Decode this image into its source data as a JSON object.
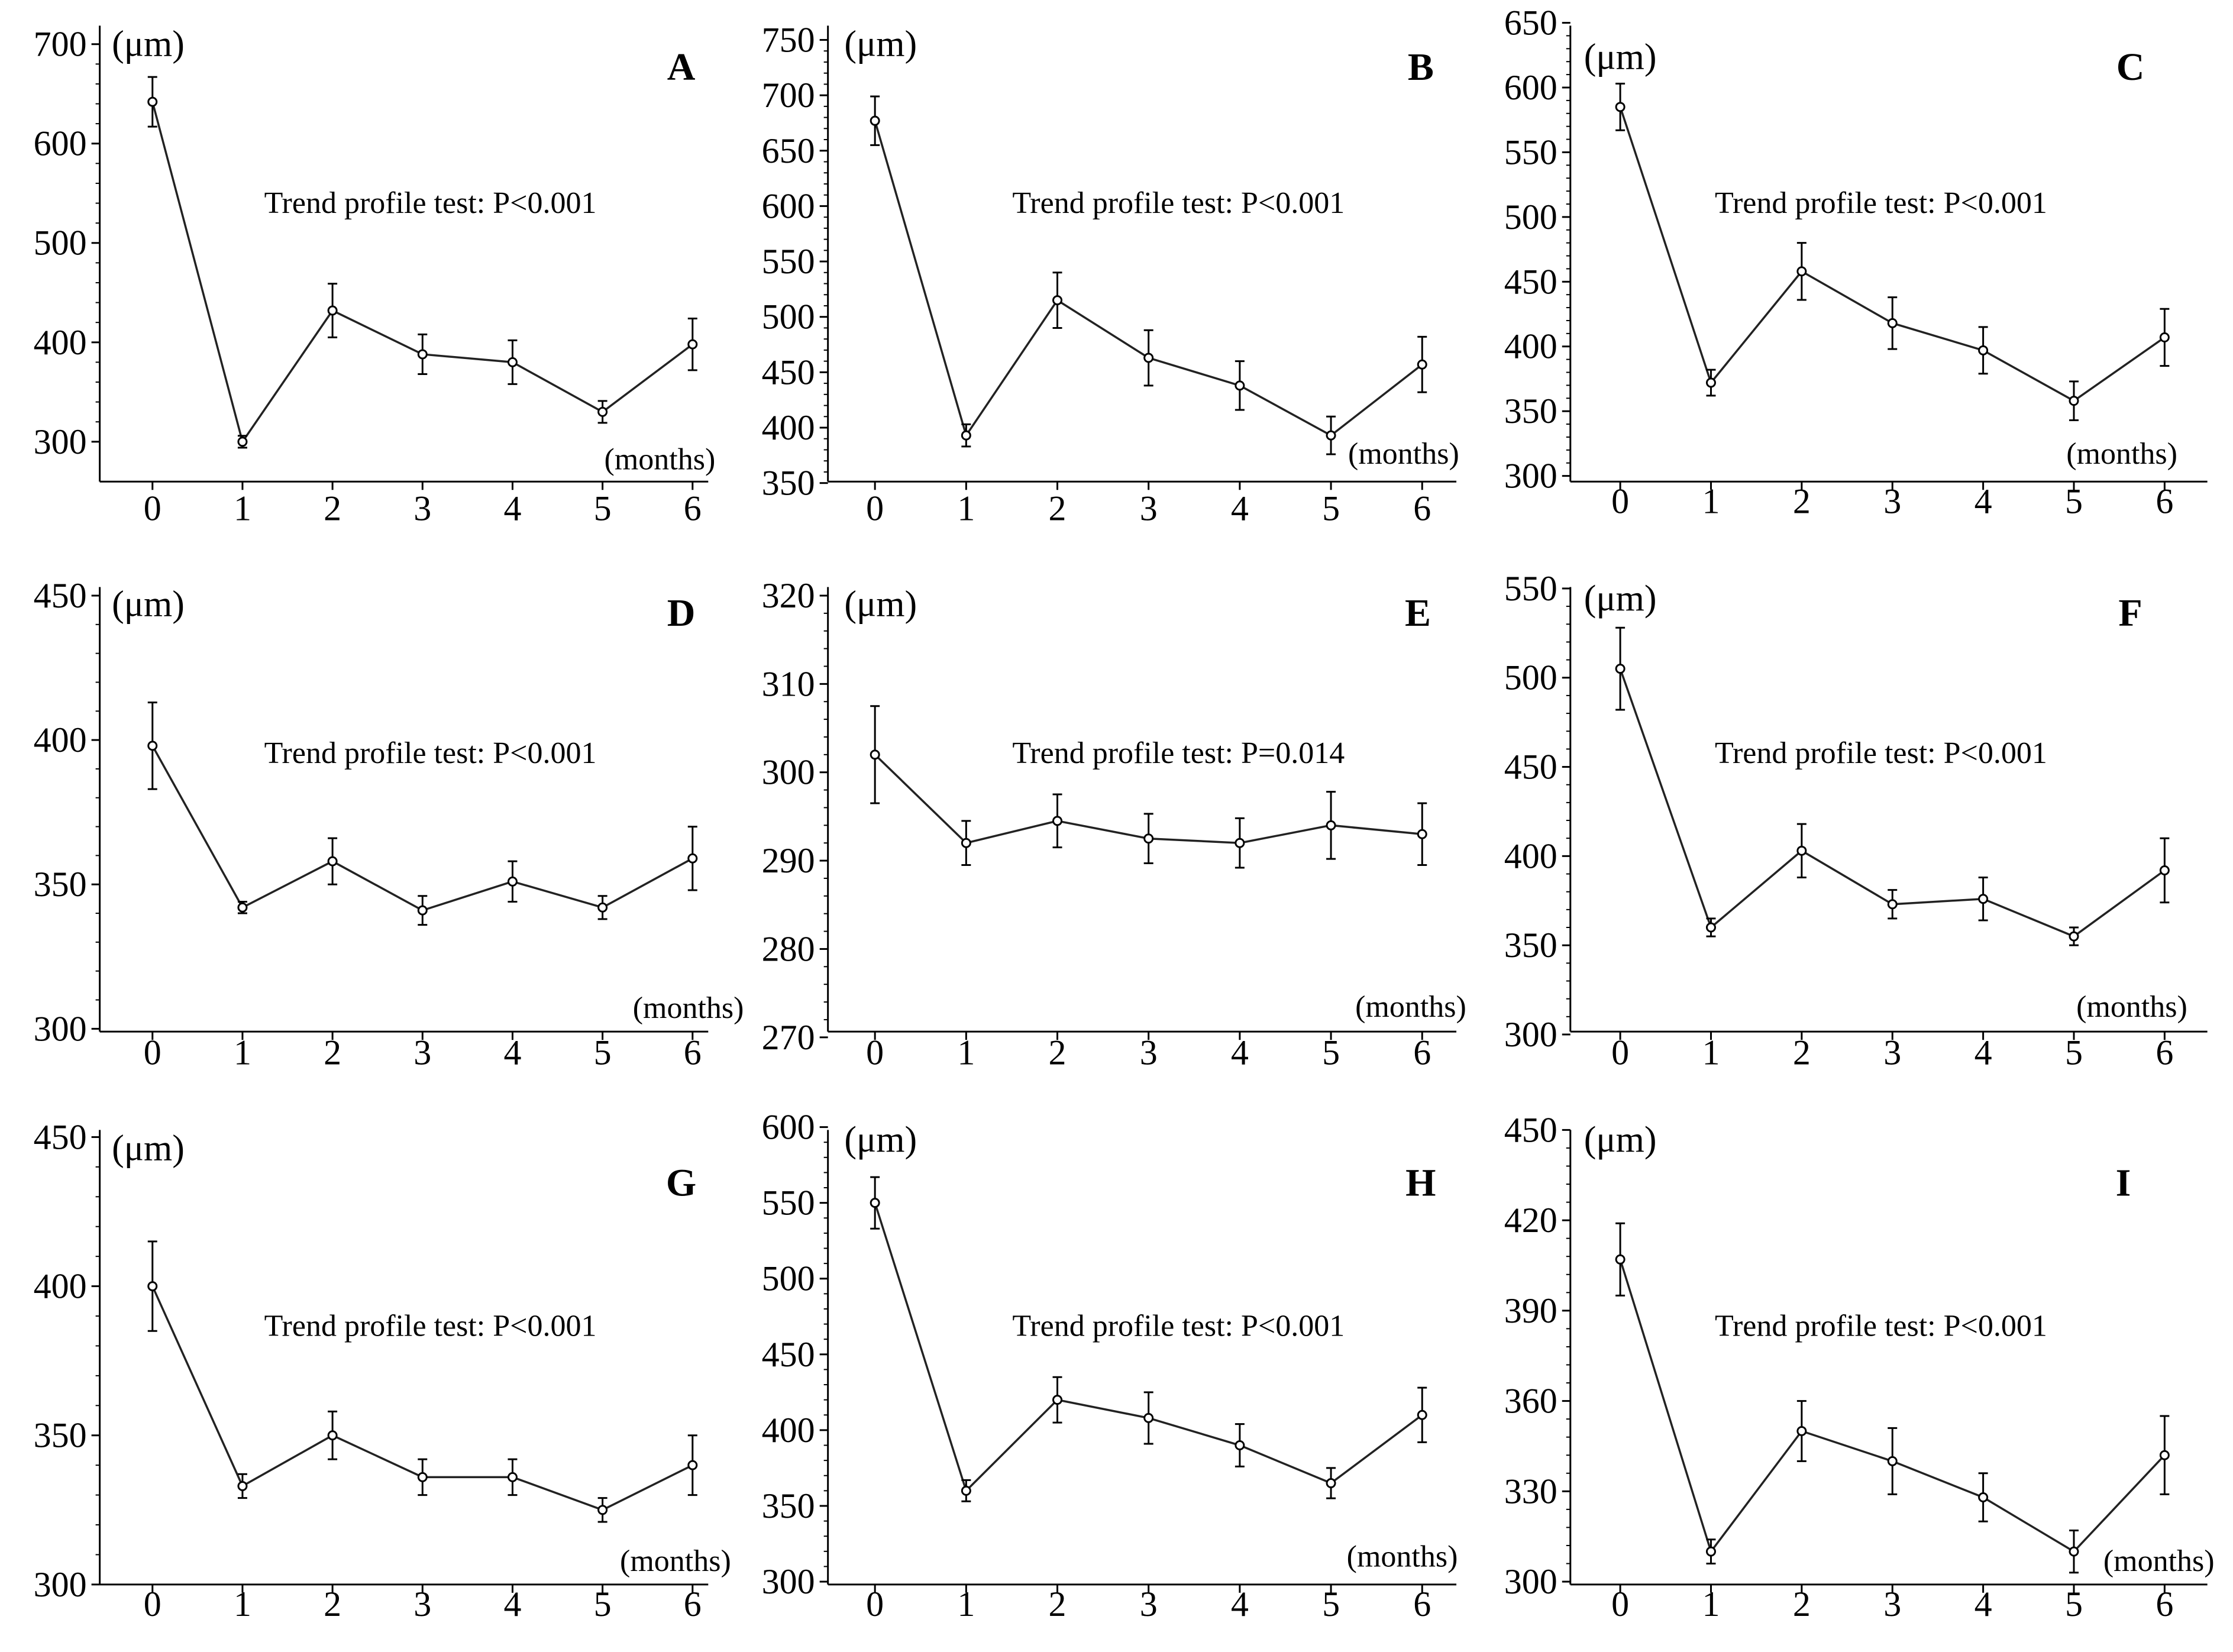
{
  "figure": {
    "x_unit_label": "(months)",
    "y_unit_label": "(μm)"
  },
  "chart_data": [
    {
      "type": "line",
      "panel": "A",
      "annotation": "Trend profile test: P<0.001",
      "ylim": [
        270,
        730
      ],
      "yticks": [
        300,
        400,
        500,
        600,
        700
      ],
      "x": [
        0,
        1,
        2,
        3,
        4,
        5,
        6
      ],
      "values": [
        642,
        300,
        432,
        388,
        380,
        330,
        398
      ],
      "errors": [
        25,
        6,
        27,
        20,
        22,
        11,
        26
      ]
    },
    {
      "type": "line",
      "panel": "B",
      "annotation": "Trend profile test: P<0.001",
      "ylim": [
        350,
        750
      ],
      "yticks": [
        350,
        400,
        450,
        500,
        550,
        600,
        650,
        700,
        750
      ],
      "x": [
        0,
        1,
        2,
        3,
        4,
        5,
        6
      ],
      "values": [
        677,
        393,
        515,
        463,
        438,
        393,
        457
      ],
      "errors": [
        22,
        10,
        25,
        25,
        22,
        17,
        25
      ]
    },
    {
      "type": "line",
      "panel": "C",
      "annotation": "Trend profile test: P<0.001",
      "ylim": [
        300,
        650
      ],
      "yticks": [
        300,
        350,
        400,
        450,
        500,
        550,
        600,
        650
      ],
      "x": [
        0,
        1,
        2,
        3,
        4,
        5,
        6
      ],
      "values": [
        585,
        372,
        458,
        418,
        397,
        358,
        407
      ],
      "errors": [
        18,
        10,
        22,
        20,
        18,
        15,
        22
      ]
    },
    {
      "type": "line",
      "panel": "D",
      "annotation": "Trend profile test: P<0.001",
      "ylim": [
        300,
        450
      ],
      "yticks": [
        300,
        350,
        400,
        450
      ],
      "x": [
        0,
        1,
        2,
        3,
        4,
        5,
        6
      ],
      "values": [
        398,
        342,
        358,
        341,
        351,
        342,
        359
      ],
      "errors": [
        15,
        2,
        8,
        5,
        7,
        4,
        11
      ]
    },
    {
      "type": "line",
      "panel": "E",
      "annotation": "Trend profile test: P=0.014",
      "ylim": [
        270,
        320
      ],
      "yticks": [
        270,
        280,
        290,
        300,
        310,
        320
      ],
      "x": [
        0,
        1,
        2,
        3,
        4,
        5,
        6
      ],
      "values": [
        302,
        292,
        294.5,
        292.5,
        292,
        294,
        293
      ],
      "errors": [
        5.5,
        2.5,
        3,
        2.8,
        2.8,
        3.8,
        3.5
      ]
    },
    {
      "type": "line",
      "panel": "F",
      "annotation": "Trend profile test: P<0.001",
      "ylim": [
        300,
        550
      ],
      "yticks": [
        300,
        350,
        400,
        450,
        500,
        550
      ],
      "x": [
        0,
        1,
        2,
        3,
        4,
        5,
        6
      ],
      "values": [
        505,
        360,
        403,
        373,
        376,
        355,
        392
      ],
      "errors": [
        23,
        5,
        15,
        8,
        12,
        5,
        18
      ]
    },
    {
      "type": "line",
      "panel": "G",
      "annotation": "Trend profile test: P<0.001",
      "ylim": [
        300,
        450
      ],
      "yticks": [
        300,
        350,
        400,
        450
      ],
      "x": [
        0,
        1,
        2,
        3,
        4,
        5,
        6
      ],
      "values": [
        400,
        333,
        350,
        336,
        336,
        325,
        340
      ],
      "errors": [
        15,
        4,
        8,
        6,
        6,
        4,
        10
      ]
    },
    {
      "type": "line",
      "panel": "H",
      "annotation": "Trend profile test: P<0.001",
      "ylim": [
        300,
        600
      ],
      "yticks": [
        300,
        350,
        400,
        450,
        500,
        550,
        600
      ],
      "x": [
        0,
        1,
        2,
        3,
        4,
        5,
        6
      ],
      "values": [
        550,
        360,
        420,
        408,
        390,
        365,
        410
      ],
      "errors": [
        17,
        7,
        15,
        17,
        14,
        10,
        18
      ]
    },
    {
      "type": "line",
      "panel": "I",
      "annotation": "Trend profile test: P<0.001",
      "ylim": [
        300,
        450
      ],
      "yticks": [
        300,
        330,
        360,
        390,
        420,
        450
      ],
      "x": [
        0,
        1,
        2,
        3,
        4,
        5,
        6
      ],
      "values": [
        407,
        310,
        350,
        340,
        328,
        310,
        342
      ],
      "errors": [
        12,
        4,
        10,
        11,
        8,
        7,
        13
      ]
    }
  ]
}
